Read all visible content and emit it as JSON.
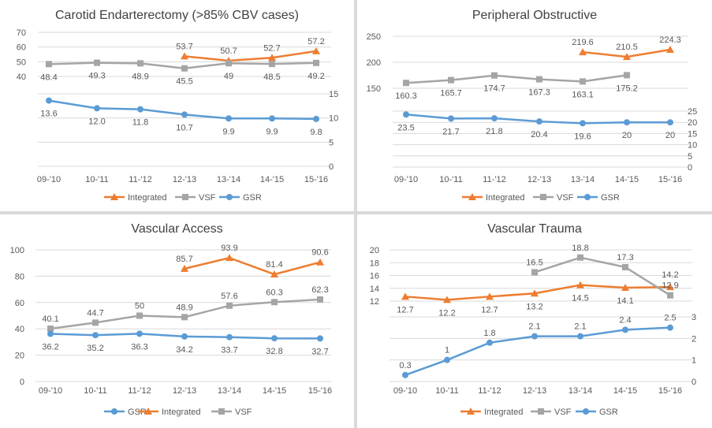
{
  "chart_data": [
    {
      "type": "line",
      "title": "Carotid Endarterectomy (>85% CBV cases)",
      "categories": [
        "09-'10",
        "10-'11",
        "11-'12",
        "12-'13",
        "13-'14",
        "14-'15",
        "15-'16"
      ],
      "legend_order": [
        "Integrated",
        "VSF",
        "GSR"
      ],
      "series": [
        {
          "name": "Integrated",
          "axis": "left",
          "values": [
            null,
            null,
            null,
            53.7,
            50.7,
            52.7,
            57.2
          ],
          "labels": [
            "",
            "",
            "",
            "53.7",
            "50.7",
            "52.7",
            "57.2"
          ],
          "label_pos": "above"
        },
        {
          "name": "VSF",
          "axis": "left",
          "values": [
            48.4,
            49.3,
            48.9,
            45.5,
            49,
            48.5,
            49.2
          ],
          "labels": [
            "48.4",
            "49.3",
            "48.9",
            "45.5",
            "49",
            "48.5",
            "49.2"
          ],
          "label_pos": "below"
        },
        {
          "name": "GSR",
          "axis": "right",
          "values": [
            13.6,
            12.0,
            11.8,
            10.7,
            9.9,
            9.9,
            9.8
          ],
          "labels": [
            "13.6",
            "12.0",
            "11.8",
            "10.7",
            "9.9",
            "9.9",
            "9.8"
          ],
          "label_pos": "below"
        }
      ],
      "left_axis": {
        "ticks": [
          "40",
          "50",
          "60",
          "70"
        ],
        "range": [
          40,
          70
        ]
      },
      "right_axis": {
        "ticks": [
          "0",
          "5",
          "10",
          "15"
        ],
        "range": [
          0,
          15
        ]
      },
      "legend": "bottom"
    },
    {
      "type": "line",
      "title": "Peripheral Obstructive",
      "categories": [
        "09-'10",
        "10-'11",
        "11-'12",
        "12-'13",
        "13-'14",
        "14-'15",
        "15-'16"
      ],
      "legend_order": [
        "Integrated",
        "VSF",
        "GSR"
      ],
      "series": [
        {
          "name": "Integrated",
          "axis": "left",
          "values": [
            null,
            null,
            null,
            null,
            219.6,
            210.5,
            224.3
          ],
          "labels": [
            "",
            "",
            "",
            "",
            "219.6",
            "210.5",
            "224.3"
          ],
          "label_pos": "above"
        },
        {
          "name": "VSF",
          "axis": "left",
          "values": [
            160.3,
            165.7,
            174.7,
            167.3,
            163.1,
            175.2,
            null
          ],
          "labels": [
            "160.3",
            "165.7",
            "174.7",
            "167.3",
            "163.1",
            "175.2",
            ""
          ],
          "label_pos": "below"
        },
        {
          "name": "GSR",
          "axis": "right",
          "values": [
            23.5,
            21.7,
            21.8,
            20.4,
            19.6,
            20,
            20
          ],
          "labels": [
            "23.5",
            "21.7",
            "21.8",
            "20.4",
            "19.6",
            "20",
            "20"
          ],
          "label_pos": "below"
        }
      ],
      "left_axis": {
        "ticks": [
          "150",
          "200",
          "250"
        ],
        "range": [
          150,
          250
        ]
      },
      "right_axis": {
        "ticks": [
          "0",
          "5",
          "10",
          "15",
          "20",
          "25"
        ],
        "range": [
          0,
          25
        ]
      },
      "legend": "bottom"
    },
    {
      "type": "line",
      "title": "Vascular Access",
      "categories": [
        "09-'10",
        "10-'11",
        "11-'12",
        "12-'13",
        "13-'14",
        "14-'15",
        "15-'16"
      ],
      "legend_order": [
        "GSR",
        "Integrated",
        "VSF"
      ],
      "series": [
        {
          "name": "Integrated",
          "axis": "left",
          "values": [
            null,
            null,
            null,
            85.7,
            93.9,
            81.4,
            90.6
          ],
          "labels": [
            "",
            "",
            "",
            "85.7",
            "93.9",
            "81.4",
            "90.6"
          ],
          "label_pos": "above"
        },
        {
          "name": "VSF",
          "axis": "left",
          "values": [
            40.1,
            44.7,
            50,
            48.9,
            57.6,
            60.3,
            62.3
          ],
          "labels": [
            "40.1",
            "44.7",
            "50",
            "48.9",
            "57.6",
            "60.3",
            "62.3"
          ],
          "label_pos": "above"
        },
        {
          "name": "GSR",
          "axis": "left",
          "values": [
            36.2,
            35.2,
            36.3,
            34.2,
            33.7,
            32.8,
            32.7
          ],
          "labels": [
            "36.2",
            "35.2",
            "36.3",
            "34.2",
            "33.7",
            "32.8",
            "32.7"
          ],
          "label_pos": "below"
        }
      ],
      "left_axis": {
        "ticks": [
          "0",
          "20",
          "40",
          "60",
          "80",
          "100"
        ],
        "range": [
          0,
          100
        ]
      },
      "right_axis": null,
      "legend": "bottom"
    },
    {
      "type": "line",
      "title": "Vascular Trauma",
      "categories": [
        "09-'10",
        "10-'11",
        "11-'12",
        "12-'13",
        "13-'14",
        "14-'15",
        "15-'16"
      ],
      "legend_order": [
        "Integrated",
        "VSF",
        "GSR"
      ],
      "series": [
        {
          "name": "Integrated",
          "axis": "left",
          "values": [
            12.7,
            12.2,
            12.7,
            13.2,
            14.5,
            14.1,
            14.2
          ],
          "labels": [
            "12.7",
            "12.2",
            "12.7",
            "13.2",
            "14.5",
            "14.1",
            ""
          ],
          "label_pos": "below"
        },
        {
          "name": "VSF",
          "axis": "left",
          "values": [
            null,
            null,
            null,
            16.5,
            18.8,
            17.3,
            12.9
          ],
          "labels": [
            "",
            "",
            "",
            "16.5",
            "18.8",
            "17.3",
            "12.9"
          ],
          "label_pos": "above"
        },
        {
          "name": "GSR",
          "axis": "right",
          "values": [
            0.3,
            1,
            1.8,
            2.1,
            2.1,
            2.4,
            2.5
          ],
          "labels": [
            "0.3",
            "1",
            "1.8",
            "2.1",
            "2.1",
            "2.4",
            "2.5"
          ],
          "label_pos": "above"
        }
      ],
      "left_axis": {
        "ticks": [
          "12",
          "14",
          "16",
          "18",
          "20"
        ],
        "range": [
          12,
          20
        ]
      },
      "right_axis": {
        "ticks": [
          "0",
          "1",
          "2",
          "3"
        ],
        "range": [
          0,
          3
        ]
      },
      "extra_labels": [
        "14.2"
      ],
      "legend": "bottom"
    }
  ],
  "colors": {
    "Integrated": "#ed7d31",
    "VSF": "#a5a5a5",
    "GSR": "#5b9bd5",
    "grid": "#d9d9d9",
    "text": "#595959",
    "title": "#404040"
  }
}
